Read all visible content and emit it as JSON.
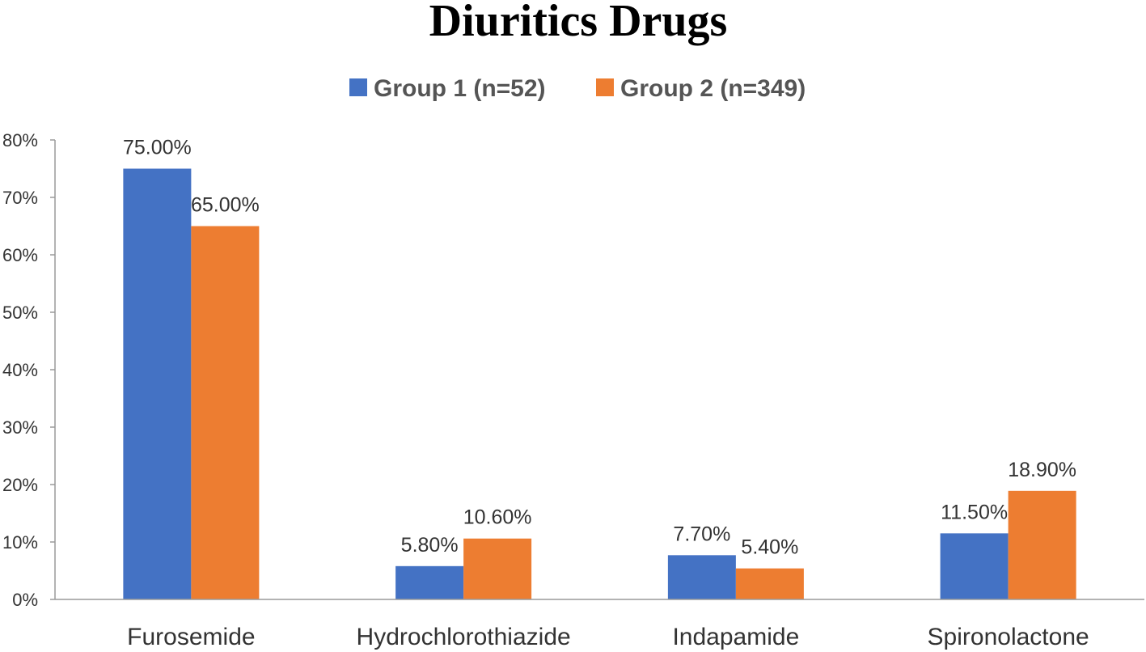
{
  "chart_data": {
    "type": "bar",
    "title": "Diuritics Drugs",
    "xlabel": "",
    "ylabel": "",
    "categories": [
      "Furosemide",
      "Hydrochlorothiazide",
      "Indapamide",
      "Spironolactone"
    ],
    "series": [
      {
        "name": "Group 1 (n=52)",
        "color": "#4472C4",
        "values": [
          75.0,
          5.8,
          7.7,
          11.5
        ],
        "labels": [
          "75.00%",
          "5.80%",
          "7.70%",
          "11.50%"
        ]
      },
      {
        "name": "Group 2 (n=349)",
        "color": "#ED7D31",
        "values": [
          65.0,
          10.6,
          5.4,
          18.9
        ],
        "labels": [
          "65.00%",
          "10.60%",
          "5.40%",
          "18.90%"
        ]
      }
    ],
    "ylim": [
      0,
      80
    ],
    "yticks": [
      0,
      10,
      20,
      30,
      40,
      50,
      60,
      70,
      80
    ],
    "ytick_labels": [
      "0%",
      "10%",
      "20%",
      "30%",
      "40%",
      "50%",
      "60%",
      "70%",
      "80%"
    ],
    "grid": false,
    "legend_position": "top-center"
  }
}
